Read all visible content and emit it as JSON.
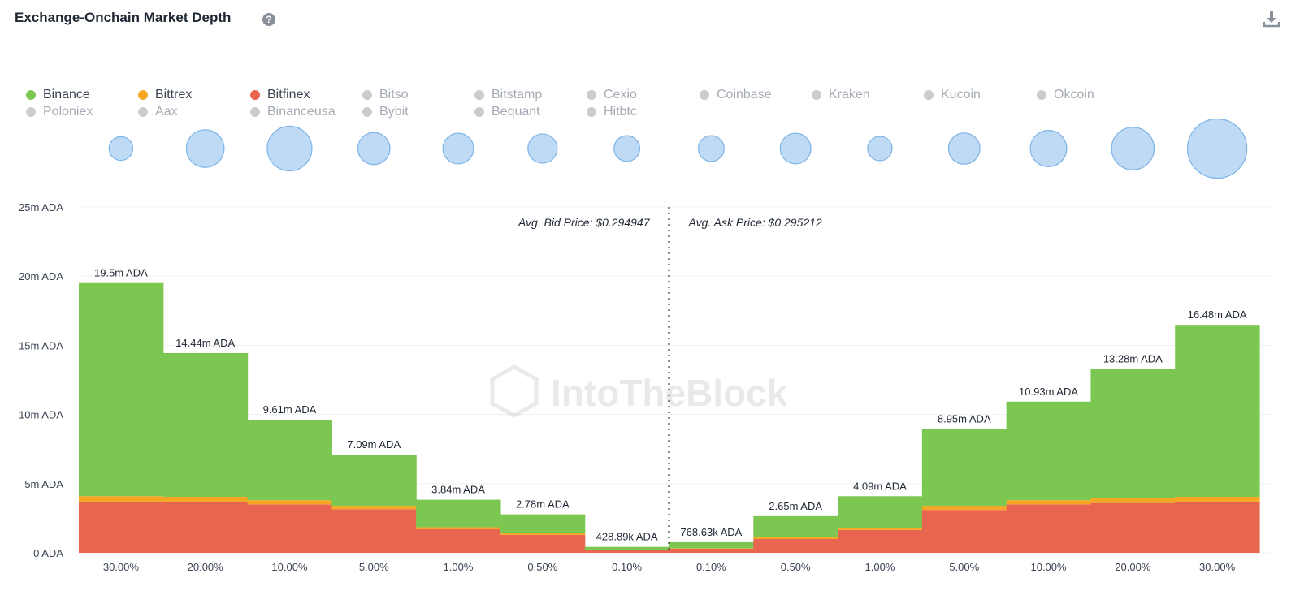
{
  "header": {
    "title": "Exchange-Onchain Market Depth",
    "help_icon": "?",
    "download_icon_name": "download-icon"
  },
  "legend": [
    {
      "name": "Binance",
      "color": "#7cc752",
      "active": true
    },
    {
      "name": "Bittrex",
      "color": "#f5a623",
      "active": true
    },
    {
      "name": "Bitfinex",
      "color": "#e8654f",
      "active": true
    },
    {
      "name": "Bitso",
      "color": "#cccccc",
      "active": false
    },
    {
      "name": "Bitstamp",
      "color": "#cccccc",
      "active": false
    },
    {
      "name": "Cexio",
      "color": "#cccccc",
      "active": false
    },
    {
      "name": "Coinbase",
      "color": "#cccccc",
      "active": false
    },
    {
      "name": "Kraken",
      "color": "#cccccc",
      "active": false
    },
    {
      "name": "Kucoin",
      "color": "#cccccc",
      "active": false
    },
    {
      "name": "Okcoin",
      "color": "#cccccc",
      "active": false
    },
    {
      "name": "Poloniex",
      "color": "#cccccc",
      "active": false
    },
    {
      "name": "Aax",
      "color": "#cccccc",
      "active": false
    },
    {
      "name": "Binanceusa",
      "color": "#cccccc",
      "active": false
    },
    {
      "name": "Bybit",
      "color": "#cccccc",
      "active": false
    },
    {
      "name": "Bequant",
      "color": "#cccccc",
      "active": false
    },
    {
      "name": "Hitbtc",
      "color": "#cccccc",
      "active": false
    }
  ],
  "chart_data": {
    "type": "bar",
    "title": "Exchange-Onchain Market Depth",
    "categories": [
      "30.00%",
      "20.00%",
      "10.00%",
      "5.00%",
      "1.00%",
      "0.50%",
      "0.10%",
      "0.10%",
      "0.50%",
      "1.00%",
      "5.00%",
      "10.00%",
      "20.00%",
      "30.00%"
    ],
    "side": [
      "bid",
      "bid",
      "bid",
      "bid",
      "bid",
      "bid",
      "bid",
      "ask",
      "ask",
      "ask",
      "ask",
      "ask",
      "ask",
      "ask"
    ],
    "series": [
      {
        "name": "Bitfinex",
        "color": "#e8654f",
        "values": [
          3.7,
          3.7,
          3.5,
          3.15,
          1.7,
          1.3,
          0.2,
          0.3,
          1.0,
          1.65,
          3.1,
          3.5,
          3.6,
          3.7
        ]
      },
      {
        "name": "Bittrex",
        "color": "#f5a623",
        "values": [
          0.4,
          0.35,
          0.3,
          0.25,
          0.15,
          0.12,
          0.03,
          0.03,
          0.15,
          0.15,
          0.3,
          0.3,
          0.35,
          0.35
        ]
      },
      {
        "name": "Binance",
        "color": "#7cc752",
        "values": [
          15.4,
          10.39,
          5.81,
          3.69,
          1.99,
          1.36,
          0.19889,
          0.43863,
          1.5,
          2.29,
          5.55,
          7.13,
          9.33,
          12.43
        ]
      }
    ],
    "totals": [
      19.5,
      14.44,
      9.61,
      7.09,
      3.84,
      2.78,
      0.42889,
      0.76863,
      2.65,
      4.09,
      8.95,
      10.93,
      13.28,
      16.48
    ],
    "total_labels": [
      "19.5m ADA",
      "14.44m ADA",
      "9.61m ADA",
      "7.09m ADA",
      "3.84m ADA",
      "2.78m ADA",
      "428.89k ADA",
      "768.63k ADA",
      "2.65m ADA",
      "4.09m ADA",
      "8.95m ADA",
      "10.93m ADA",
      "13.28m ADA",
      "16.48m ADA"
    ],
    "bubble_sizes": [
      2.0,
      4.0,
      5.0,
      3.2,
      3.0,
      2.8,
      2.3,
      2.3,
      3.0,
      2.1,
      3.1,
      3.8,
      4.7,
      7.1
    ],
    "y_ticks": [
      "0 ADA",
      "5m ADA",
      "10m ADA",
      "15m ADA",
      "20m ADA",
      "25m ADA"
    ],
    "ylim": [
      0,
      25
    ],
    "y_unit": "m ADA",
    "avg_bid_label": "Avg. Bid Price: $0.294947",
    "avg_ask_label": "Avg. Ask Price: $0.295212",
    "watermark": "IntoTheBlock",
    "grid": true,
    "legend_position": "top"
  }
}
